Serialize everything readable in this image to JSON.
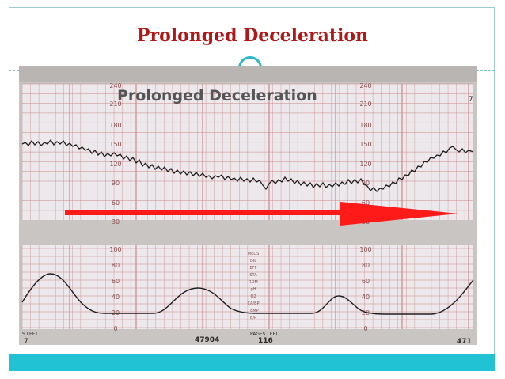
{
  "slide": {
    "title": "Prolonged Deceleration"
  },
  "strip": {
    "caption": "Prolonged Deceleration",
    "fhr_scale": [
      "240",
      "210",
      "180",
      "150",
      "120",
      "90",
      "60",
      "30"
    ],
    "uc_scale": [
      "100",
      "80",
      "60",
      "40",
      "20",
      "0"
    ],
    "side_labels": [
      "MEDS",
      "DIL",
      "EFF",
      "STA",
      "ROM",
      "pH",
      "O2",
      "CA/BP",
      "TEMP",
      "B/P"
    ],
    "bottom_left": "S LEFT",
    "bottom_left_value": "7",
    "bottom_id": "47904",
    "pages_left_label": "PAGES LEFT",
    "pages_left_value": "116",
    "bottom_right": "471",
    "top_right_mark": "7"
  },
  "colors": {
    "title": "#b01818",
    "accent": "#21c2d4",
    "grid": "#c98a8a",
    "arrow": "#ff1a1a",
    "trace": "#1e1e1e"
  }
}
